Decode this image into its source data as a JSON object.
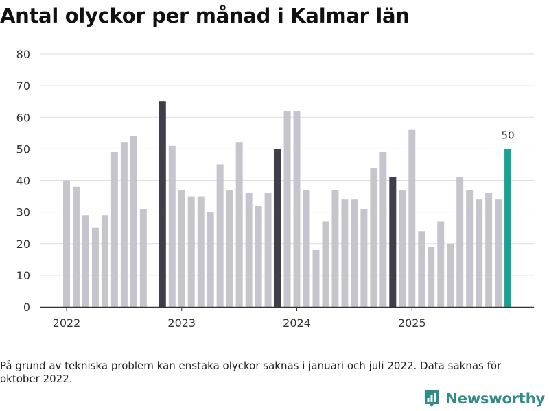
{
  "title": "Antal olyckor per månad i Kalmar län",
  "chart_data": {
    "type": "bar",
    "title": "Antal olyckor per månad i Kalmar län",
    "xlabel": "",
    "ylabel": "",
    "ylim": [
      0,
      80
    ],
    "yticks": [
      0,
      10,
      20,
      30,
      40,
      50,
      60,
      70,
      80
    ],
    "grid": true,
    "year_ticks": [
      {
        "label": "2022",
        "index": 0
      },
      {
        "label": "2023",
        "index": 12
      },
      {
        "label": "2024",
        "index": 24
      },
      {
        "label": "2025",
        "index": 36
      }
    ],
    "months": [
      "2022-01",
      "2022-02",
      "2022-03",
      "2022-04",
      "2022-05",
      "2022-06",
      "2022-07",
      "2022-08",
      "2022-09",
      "2022-10",
      "2022-11",
      "2022-12",
      "2023-01",
      "2023-02",
      "2023-03",
      "2023-04",
      "2023-05",
      "2023-06",
      "2023-07",
      "2023-08",
      "2023-09",
      "2023-10",
      "2023-11",
      "2023-12",
      "2024-01",
      "2024-02",
      "2024-03",
      "2024-04",
      "2024-05",
      "2024-06",
      "2024-07",
      "2024-08",
      "2024-09",
      "2024-10",
      "2024-11",
      "2024-12",
      "2025-01",
      "2025-02",
      "2025-03",
      "2025-04",
      "2025-05",
      "2025-06",
      "2025-07",
      "2025-08",
      "2025-09",
      "2025-10",
      "2025-11"
    ],
    "values": [
      40,
      38,
      29,
      25,
      29,
      49,
      52,
      54,
      31,
      null,
      65,
      51,
      37,
      35,
      35,
      30,
      45,
      37,
      52,
      36,
      32,
      36,
      50,
      62,
      62,
      37,
      18,
      27,
      37,
      34,
      34,
      31,
      44,
      49,
      41,
      37,
      56,
      24,
      19,
      27,
      20,
      41,
      37,
      34,
      36,
      34,
      50
    ],
    "highlight": {
      "november_indices": [
        10,
        22,
        34
      ],
      "latest_index": 46,
      "latest_label": "50"
    },
    "colors": {
      "default": "#c6c5cd",
      "november": "#3f3e49",
      "latest": "#17a294",
      "grid": "#dddddd",
      "axis": "#333333"
    }
  },
  "footnote": "På grund av tekniska problem kan enstaka olyckor saknas i januari och juli 2022. Data saknas för oktober 2022.",
  "brand": {
    "name": "Newsworthy",
    "logo_icon": "newsworthy-bar-chart-icon",
    "color": "#2f8c8a"
  }
}
